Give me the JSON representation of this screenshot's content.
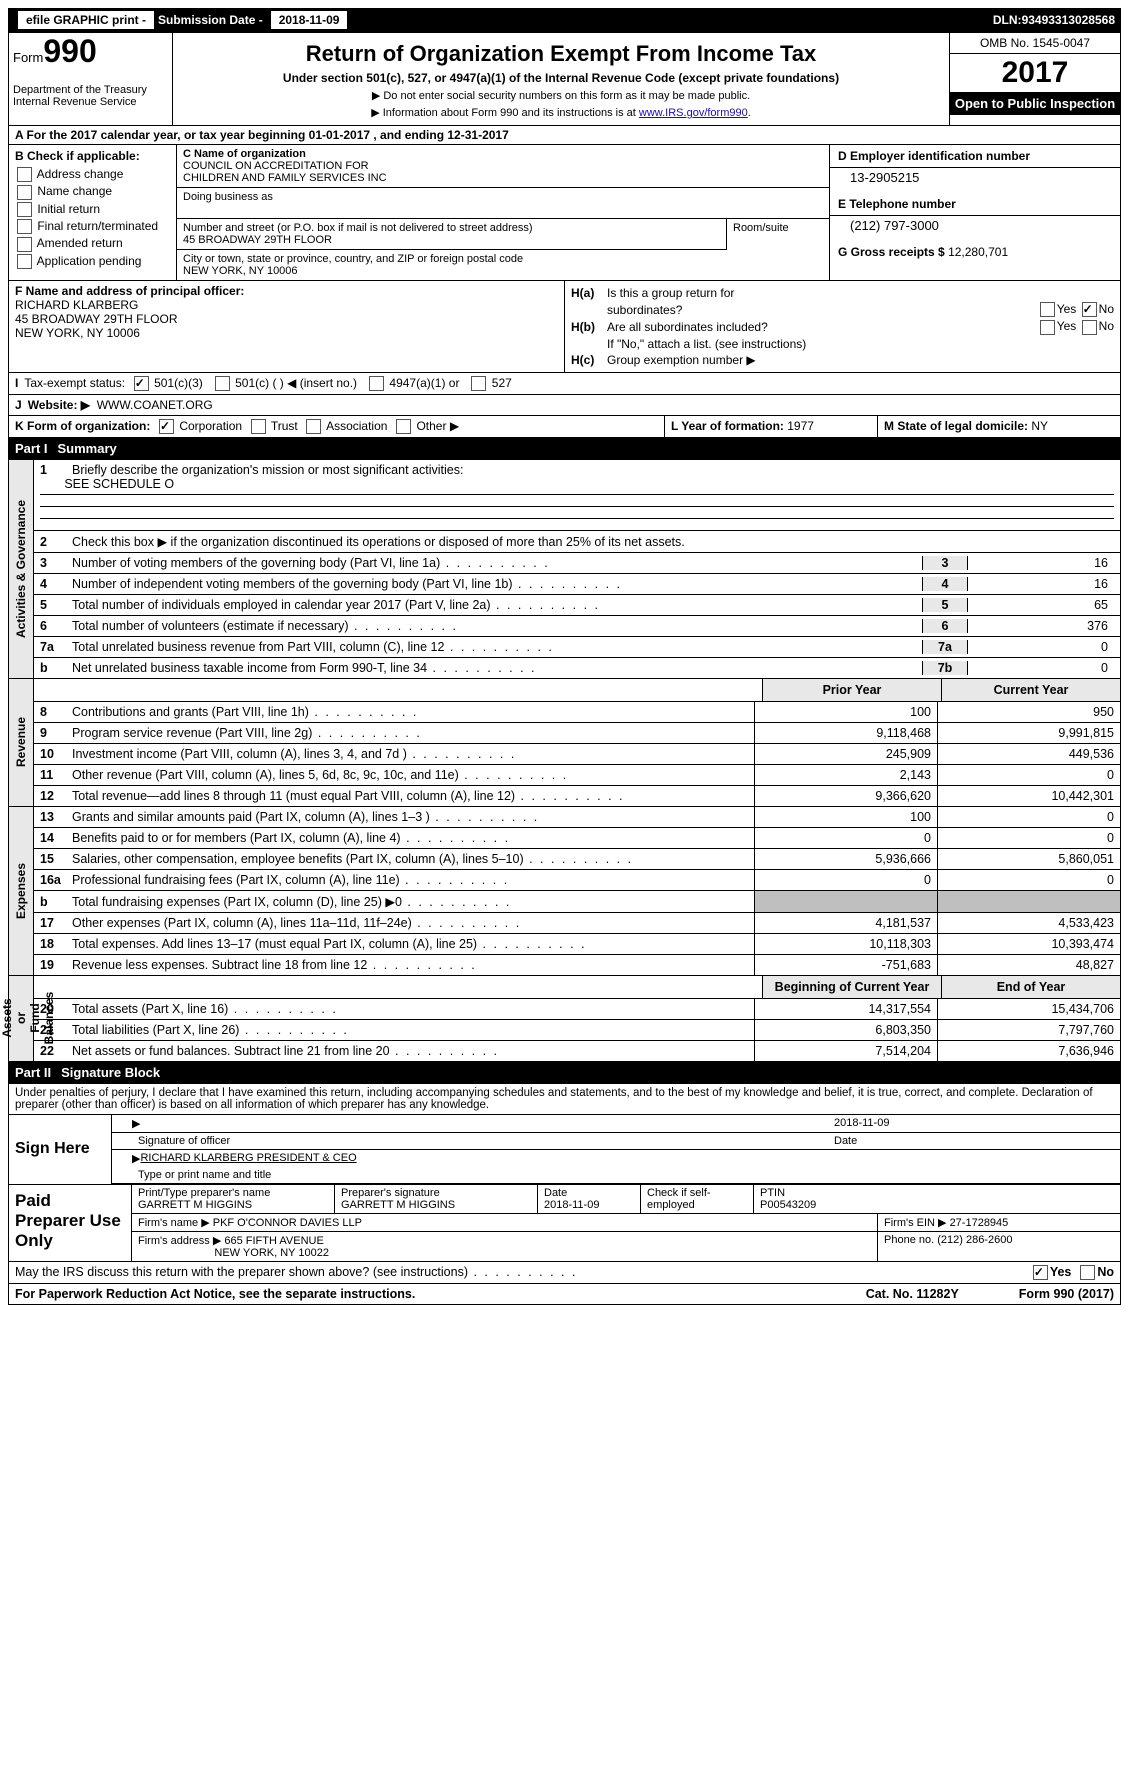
{
  "topbar": {
    "efile_label": "efile GRAPHIC print - ",
    "submission_label": "Submission Date - ",
    "submission_date": "2018-11-09",
    "dln_label": "DLN: ",
    "dln": "93493313028568"
  },
  "header": {
    "form_label": "Form",
    "form_number": "990",
    "dept1": "Department of the Treasury",
    "dept2": "Internal Revenue Service",
    "title": "Return of Organization Exempt From Income Tax",
    "subtitle": "Under section 501(c), 527, or 4947(a)(1) of the Internal Revenue Code (except private foundations)",
    "note1": "▶ Do not enter social security numbers on this form as it may be made public.",
    "note2_prefix": "▶ Information about Form 990 and its instructions is at ",
    "note2_link": "www.IRS.gov/form990",
    "omb": "OMB No. 1545-0047",
    "year": "2017",
    "open": "Open to Public Inspection"
  },
  "row_a": "A  For the 2017 calendar year, or tax year beginning 01-01-2017   , and ending 12-31-2017",
  "section_b": {
    "header": "B Check if applicable:",
    "items": [
      "Address change",
      "Name change",
      "Initial return",
      "Final return/terminated",
      "Amended return",
      "Application pending"
    ]
  },
  "section_c": {
    "name_label": "C Name of organization",
    "name": "COUNCIL ON ACCREDITATION FOR\nCHILDREN AND FAMILY SERVICES INC",
    "dba_label": "Doing business as",
    "street_label": "Number and street (or P.O. box if mail is not delivered to street address)",
    "room_label": "Room/suite",
    "street": "45 BROADWAY 29TH FLOOR",
    "city_label": "City or town, state or province, country, and ZIP or foreign postal code",
    "city": "NEW YORK, NY  10006"
  },
  "section_d": {
    "ein_label": "D Employer identification number",
    "ein": "13-2905215",
    "tel_label": "E Telephone number",
    "tel": "(212) 797-3000",
    "gross_label": "G Gross receipts $ ",
    "gross": "12,280,701"
  },
  "section_f": {
    "label": "F Name and address of principal officer:",
    "name": "RICHARD KLARBERG",
    "street": "45 BROADWAY 29TH FLOOR",
    "city": "NEW YORK, NY  10006"
  },
  "section_h": {
    "ha": "Is this a group return for",
    "ha2": "subordinates?",
    "hb": "Are all subordinates included?",
    "hb_note": "If \"No,\" attach a list. (see instructions)",
    "hc": "Group exemption number ▶"
  },
  "row_i": {
    "label": "Tax-exempt status:",
    "o1": "501(c)(3)",
    "o2": "501(c) (   ) ◀ (insert no.)",
    "o3": "4947(a)(1) or",
    "o4": "527"
  },
  "row_j": {
    "label": "Website: ▶",
    "url": "WWW.COANET.ORG"
  },
  "row_k": {
    "label": "K Form of organization:",
    "o1": "Corporation",
    "o2": "Trust",
    "o3": "Association",
    "o4": "Other ▶",
    "l_label": "L Year of formation: ",
    "l_val": "1977",
    "m_label": "M State of legal domicile: ",
    "m_val": "NY"
  },
  "part1": {
    "header_label": "Part I",
    "header_title": "Summary",
    "line1_label": "Briefly describe the organization's mission or most significant activities:",
    "line1_val": "SEE SCHEDULE O",
    "line2": "Check this box ▶       if the organization discontinued its operations or disposed of more than 25% of its net assets.",
    "governance": [
      {
        "n": "3",
        "t": "Number of voting members of the governing body (Part VI, line 1a)",
        "ln": "3",
        "v": "16"
      },
      {
        "n": "4",
        "t": "Number of independent voting members of the governing body (Part VI, line 1b)",
        "ln": "4",
        "v": "16"
      },
      {
        "n": "5",
        "t": "Total number of individuals employed in calendar year 2017 (Part V, line 2a)",
        "ln": "5",
        "v": "65"
      },
      {
        "n": "6",
        "t": "Total number of volunteers (estimate if necessary)",
        "ln": "6",
        "v": "376"
      },
      {
        "n": "7a",
        "t": "Total unrelated business revenue from Part VIII, column (C), line 12",
        "ln": "7a",
        "v": "0"
      },
      {
        "n": "b",
        "t": "Net unrelated business taxable income from Form 990-T, line 34",
        "ln": "7b",
        "v": "0"
      }
    ],
    "two_col_headers": {
      "c1": "Prior Year",
      "c2": "Current Year"
    },
    "revenue": [
      {
        "n": "8",
        "t": "Contributions and grants (Part VIII, line 1h)",
        "c1": "100",
        "c2": "950"
      },
      {
        "n": "9",
        "t": "Program service revenue (Part VIII, line 2g)",
        "c1": "9,118,468",
        "c2": "9,991,815"
      },
      {
        "n": "10",
        "t": "Investment income (Part VIII, column (A), lines 3, 4, and 7d )",
        "c1": "245,909",
        "c2": "449,536"
      },
      {
        "n": "11",
        "t": "Other revenue (Part VIII, column (A), lines 5, 6d, 8c, 9c, 10c, and 11e)",
        "c1": "2,143",
        "c2": "0"
      },
      {
        "n": "12",
        "t": "Total revenue—add lines 8 through 11 (must equal Part VIII, column (A), line 12)",
        "c1": "9,366,620",
        "c2": "10,442,301"
      }
    ],
    "expenses": [
      {
        "n": "13",
        "t": "Grants and similar amounts paid (Part IX, column (A), lines 1–3 )",
        "c1": "100",
        "c2": "0"
      },
      {
        "n": "14",
        "t": "Benefits paid to or for members (Part IX, column (A), line 4)",
        "c1": "0",
        "c2": "0"
      },
      {
        "n": "15",
        "t": "Salaries, other compensation, employee benefits (Part IX, column (A), lines 5–10)",
        "c1": "5,936,666",
        "c2": "5,860,051"
      },
      {
        "n": "16a",
        "t": "Professional fundraising fees (Part IX, column (A), line 11e)",
        "c1": "0",
        "c2": "0"
      },
      {
        "n": "b",
        "t": "Total fundraising expenses (Part IX, column (D), line 25) ▶0",
        "c1": "",
        "c2": "",
        "shade": true
      },
      {
        "n": "17",
        "t": "Other expenses (Part IX, column (A), lines 11a–11d, 11f–24e)",
        "c1": "4,181,537",
        "c2": "4,533,423"
      },
      {
        "n": "18",
        "t": "Total expenses. Add lines 13–17 (must equal Part IX, column (A), line 25)",
        "c1": "10,118,303",
        "c2": "10,393,474"
      },
      {
        "n": "19",
        "t": "Revenue less expenses. Subtract line 18 from line 12",
        "c1": "-751,683",
        "c2": "48,827"
      }
    ],
    "net_headers": {
      "c1": "Beginning of Current Year",
      "c2": "End of Year"
    },
    "net": [
      {
        "n": "20",
        "t": "Total assets (Part X, line 16)",
        "c1": "14,317,554",
        "c2": "15,434,706"
      },
      {
        "n": "21",
        "t": "Total liabilities (Part X, line 26)",
        "c1": "6,803,350",
        "c2": "7,797,760"
      },
      {
        "n": "22",
        "t": "Net assets or fund balances. Subtract line 21 from line 20",
        "c1": "7,514,204",
        "c2": "7,636,946"
      }
    ],
    "side_labels": {
      "gov": "Activities & Governance",
      "rev": "Revenue",
      "exp": "Expenses",
      "net": "Net Assets or\nFund Balances"
    }
  },
  "part2": {
    "header_label": "Part II",
    "header_title": "Signature Block",
    "perjury": "Under penalties of perjury, I declare that I have examined this return, including accompanying schedules and statements, and to the best of my knowledge and belief, it is true, correct, and complete. Declaration of preparer (other than officer) is based on all information of which preparer has any knowledge.",
    "sign_here": "Sign Here",
    "sig_date": "2018-11-09",
    "sig_officer_label": "Signature of officer",
    "sig_date_label": "Date",
    "officer_name": "RICHARD KLARBERG PRESIDENT & CEO",
    "officer_name_label": "Type or print name and title",
    "paid_label": "Paid Preparer Use Only",
    "preparer_name_label": "Print/Type preparer's name",
    "preparer_name": "GARRETT M HIGGINS",
    "preparer_sig_label": "Preparer's signature",
    "preparer_sig": "GARRETT M HIGGINS",
    "prep_date_label": "Date",
    "prep_date": "2018-11-09",
    "self_emp_label": "Check       if self-employed",
    "ptin_label": "PTIN",
    "ptin": "P00543209",
    "firm_name_label": "Firm's name      ▶ ",
    "firm_name": "PKF O'CONNOR DAVIES LLP",
    "firm_ein_label": "Firm's EIN ▶ ",
    "firm_ein": "27-1728945",
    "firm_addr_label": "Firm's address ▶ ",
    "firm_addr": "665 FIFTH AVENUE",
    "firm_city": "NEW YORK, NY  10022",
    "phone_label": "Phone no. ",
    "phone": "(212) 286-2600"
  },
  "footer": {
    "discuss": "May the IRS discuss this return with the preparer shown above? (see instructions)",
    "yes": "Yes",
    "no": "No",
    "pra": "For Paperwork Reduction Act Notice, see the separate instructions.",
    "cat": "Cat. No. 11282Y",
    "form": "Form 990 (2017)"
  }
}
